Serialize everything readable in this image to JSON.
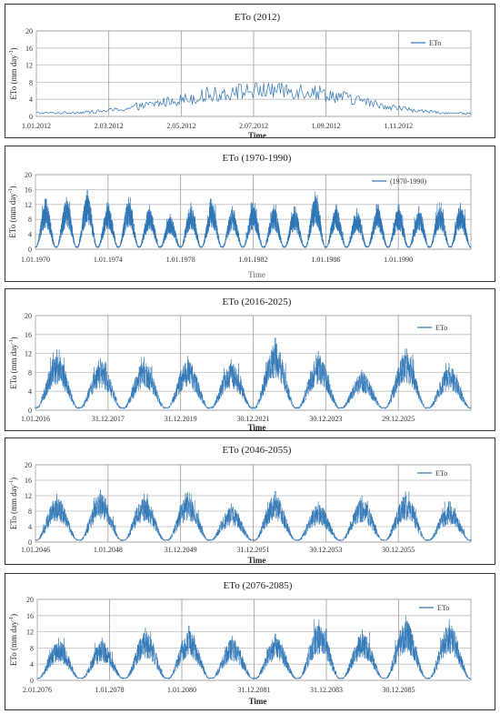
{
  "chart_data": [
    {
      "type": "line",
      "title": "ETo (2012)",
      "xlabel": "Time",
      "ylabel": "ETo (mm day-1)",
      "ylim": [
        0,
        20
      ],
      "y_ticks": [
        "0",
        "4",
        "8",
        "12",
        "16",
        "20"
      ],
      "x_tick_labels": [
        "1.01.2012",
        "2.03.2012",
        "2.05.2012",
        "2.07.2012",
        "1.09.2012",
        "1.11.2012"
      ],
      "x_range": [
        "2012-01-01",
        "2012-12-31"
      ],
      "legend": "top-right",
      "grid": true,
      "series": [
        {
          "name": "ETo",
          "color": "#2e75b6",
          "monthly_mean": [
            {
              "month": "2012-01",
              "value": 0.8
            },
            {
              "month": "2012-02",
              "value": 1.0
            },
            {
              "month": "2012-03",
              "value": 1.8
            },
            {
              "month": "2012-04",
              "value": 3.3
            },
            {
              "month": "2012-05",
              "value": 4.6
            },
            {
              "month": "2012-06",
              "value": 5.8
            },
            {
              "month": "2012-07",
              "value": 6.3
            },
            {
              "month": "2012-08",
              "value": 6.0
            },
            {
              "month": "2012-09",
              "value": 4.4
            },
            {
              "month": "2012-10",
              "value": 2.6
            },
            {
              "month": "2012-11",
              "value": 1.3
            },
            {
              "month": "2012-12",
              "value": 0.7
            }
          ],
          "daily_max": 7.8
        }
      ]
    },
    {
      "type": "line",
      "title": "ETo (1970-1990)",
      "xlabel": "Time",
      "ylabel": "ETo (mm day-1)",
      "ylim": [
        0,
        20
      ],
      "y_ticks": [
        "0",
        "4",
        "8",
        "12",
        "16",
        "20"
      ],
      "x_tick_labels": [
        "1.01.1970",
        "1.01.1974",
        "1.01.1978",
        "1.01.1982",
        "1.01.1986",
        "1.01.1990"
      ],
      "x_range": [
        "1970-01-01",
        "1990-12-31"
      ],
      "legend": "top-right",
      "grid": true,
      "series": [
        {
          "name": "(1970-1990)",
          "color": "#2e75b6",
          "annual_peak": [
            {
              "year": 1970,
              "value": 13.5
            },
            {
              "year": 1971,
              "value": 14.0
            },
            {
              "year": 1972,
              "value": 15.8
            },
            {
              "year": 1973,
              "value": 12.5
            },
            {
              "year": 1974,
              "value": 14.0
            },
            {
              "year": 1975,
              "value": 12.0
            },
            {
              "year": 1976,
              "value": 9.5
            },
            {
              "year": 1977,
              "value": 12.5
            },
            {
              "year": 1978,
              "value": 13.5
            },
            {
              "year": 1979,
              "value": 11.5
            },
            {
              "year": 1980,
              "value": 12.5
            },
            {
              "year": 1981,
              "value": 12.0
            },
            {
              "year": 1982,
              "value": 11.5
            },
            {
              "year": 1983,
              "value": 15.5
            },
            {
              "year": 1984,
              "value": 12.0
            },
            {
              "year": 1985,
              "value": 11.0
            },
            {
              "year": 1986,
              "value": 12.0
            },
            {
              "year": 1987,
              "value": 12.0
            },
            {
              "year": 1988,
              "value": 11.5
            },
            {
              "year": 1989,
              "value": 12.5
            },
            {
              "year": 1990,
              "value": 12.5
            }
          ],
          "winter_low": 0.6
        }
      ]
    },
    {
      "type": "line",
      "title": "ETo (2016-2025)",
      "xlabel": "Time",
      "ylabel": "ETo (mm day-1)",
      "ylim": [
        0,
        20
      ],
      "y_ticks": [
        "0",
        "4",
        "8",
        "12",
        "16",
        "20"
      ],
      "x_tick_labels": [
        "1.01.2016",
        "31.12.2017",
        "31.12.2019",
        "30.12.2021",
        "30.12.2023",
        "29.12.2025"
      ],
      "x_range": [
        "2016-01-01",
        "2025-12-31"
      ],
      "legend": "top-right",
      "grid": true,
      "series": [
        {
          "name": "ETo",
          "color": "#2e75b6",
          "annual_peak": [
            {
              "year": 2016,
              "value": 12.8
            },
            {
              "year": 2017,
              "value": 11.0
            },
            {
              "year": 2018,
              "value": 11.2
            },
            {
              "year": 2019,
              "value": 11.5
            },
            {
              "year": 2020,
              "value": 10.8
            },
            {
              "year": 2021,
              "value": 15.3
            },
            {
              "year": 2022,
              "value": 12.5
            },
            {
              "year": 2023,
              "value": 8.5
            },
            {
              "year": 2024,
              "value": 13.0
            },
            {
              "year": 2025,
              "value": 10.0
            }
          ],
          "winter_low": 0.5
        }
      ]
    },
    {
      "type": "line",
      "title": "ETo (2046-2055)",
      "xlabel": "Time",
      "ylabel": "ETo (mm day-1)",
      "ylim": [
        0,
        20
      ],
      "y_ticks": [
        "0",
        "4",
        "8",
        "12",
        "16",
        "20"
      ],
      "x_tick_labels": [
        "1.01.2046",
        "1.01.2048",
        "31.12.2049",
        "31.12.2051",
        "30.12.2053",
        "30.12.2055"
      ],
      "x_range": [
        "2046-01-01",
        "2055-12-30"
      ],
      "legend": "top-right",
      "grid": true,
      "series": [
        {
          "name": "ETo",
          "color": "#2e75b6",
          "annual_peak": [
            {
              "year": 2046,
              "value": 12.5
            },
            {
              "year": 2047,
              "value": 13.5
            },
            {
              "year": 2048,
              "value": 12.5
            },
            {
              "year": 2049,
              "value": 12.8
            },
            {
              "year": 2050,
              "value": 10.0
            },
            {
              "year": 2051,
              "value": 13.2
            },
            {
              "year": 2052,
              "value": 10.5
            },
            {
              "year": 2053,
              "value": 12.0
            },
            {
              "year": 2054,
              "value": 13.0
            },
            {
              "year": 2055,
              "value": 10.5
            }
          ],
          "winter_low": 0.5
        }
      ]
    },
    {
      "type": "line",
      "title": "ETo (2076-2085)",
      "xlabel": "Time",
      "ylabel": "ETo (mm day-1)",
      "ylim": [
        0,
        20
      ],
      "y_ticks": [
        "0",
        "4",
        "8",
        "12",
        "16",
        "20"
      ],
      "x_tick_labels": [
        "2.01.2076",
        "1.01.2078",
        "1.01.2080",
        "31.12.2081",
        "31.12.2083",
        "30.12.2085"
      ],
      "x_range": [
        "2076-01-02",
        "2085-12-30"
      ],
      "legend": "top-right",
      "grid": true,
      "series": [
        {
          "name": "ETo",
          "color": "#2e75b6",
          "annual_peak": [
            {
              "year": 2076,
              "value": 10.5
            },
            {
              "year": 2077,
              "value": 10.5
            },
            {
              "year": 2078,
              "value": 13.0
            },
            {
              "year": 2079,
              "value": 13.5
            },
            {
              "year": 2080,
              "value": 11.0
            },
            {
              "year": 2081,
              "value": 11.5
            },
            {
              "year": 2082,
              "value": 15.0
            },
            {
              "year": 2083,
              "value": 12.5
            },
            {
              "year": 2084,
              "value": 16.0
            },
            {
              "year": 2085,
              "value": 15.0
            }
          ],
          "winter_low": 0.5
        }
      ]
    }
  ]
}
